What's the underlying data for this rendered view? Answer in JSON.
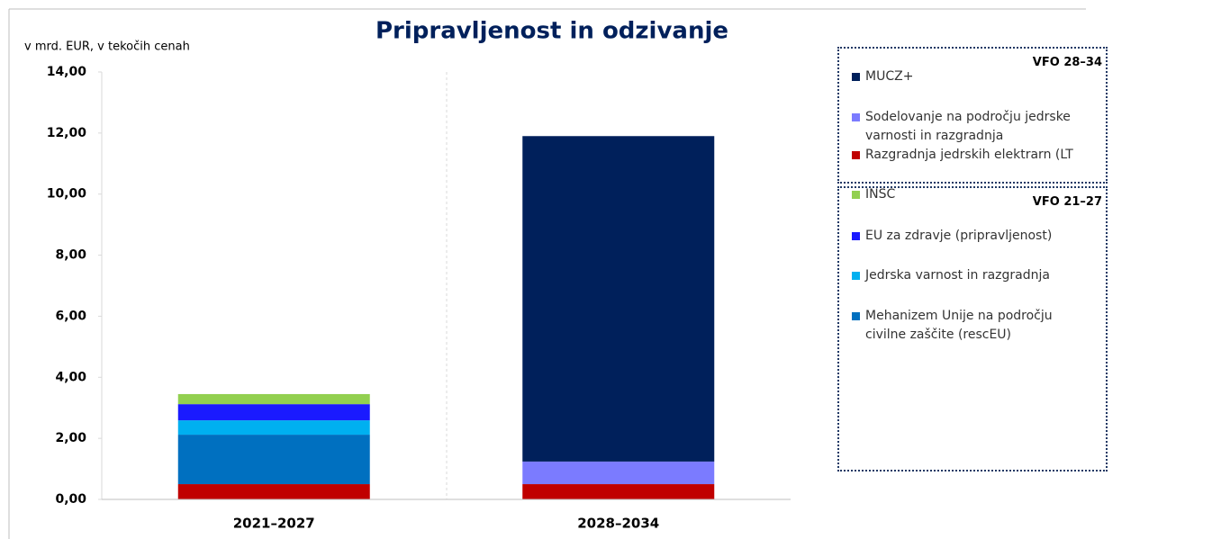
{
  "chart_data": {
    "type": "stacked_bar",
    "title": "Pripravljenost in odzivanje",
    "y_label": "v mrd. EUR, v tekočih cenah",
    "categories": [
      "2021–2027",
      "2028–2034"
    ],
    "series": [
      {
        "name": "Razgradnja jedrskih elektrarn (LT",
        "color": "#c00000",
        "values": [
          0.5,
          0.5
        ]
      },
      {
        "name": "Mehanizem Unije na področju civilne zaščite (rescEU)",
        "color": "#0070c0",
        "values": [
          1.62,
          null
        ]
      },
      {
        "name": "Jedrska varnost in razgradnja",
        "color": "#00b0f0",
        "values": [
          0.47,
          null
        ]
      },
      {
        "name": "EU za zdravje (pripravljenost)",
        "color": "#1a1aff",
        "values": [
          0.53,
          null
        ]
      },
      {
        "name": "INSC",
        "color": "#92d050",
        "values": [
          0.33,
          null
        ]
      },
      {
        "name": "Sodelovanje na področju jedrske varnosti in razgradnja",
        "color": "#7b7bff",
        "values": [
          null,
          0.74
        ]
      },
      {
        "name": "MUCZ+",
        "color": "#00205b",
        "values": [
          null,
          10.66
        ]
      }
    ],
    "legend_groups": [
      "VFO 28–34",
      "VFO 21–27"
    ],
    "ylim": [
      0,
      14
    ],
    "yticks": [
      {
        "value": 0,
        "label": "0,00"
      },
      {
        "value": 2,
        "label": "2,00"
      },
      {
        "value": 4,
        "label": "4,00"
      },
      {
        "value": 6,
        "label": "6,00"
      },
      {
        "value": 8,
        "label": "8,00"
      },
      {
        "value": 10,
        "label": "10,00"
      },
      {
        "value": 12,
        "label": "12,00"
      },
      {
        "value": 14,
        "label": "14,00"
      }
    ]
  }
}
